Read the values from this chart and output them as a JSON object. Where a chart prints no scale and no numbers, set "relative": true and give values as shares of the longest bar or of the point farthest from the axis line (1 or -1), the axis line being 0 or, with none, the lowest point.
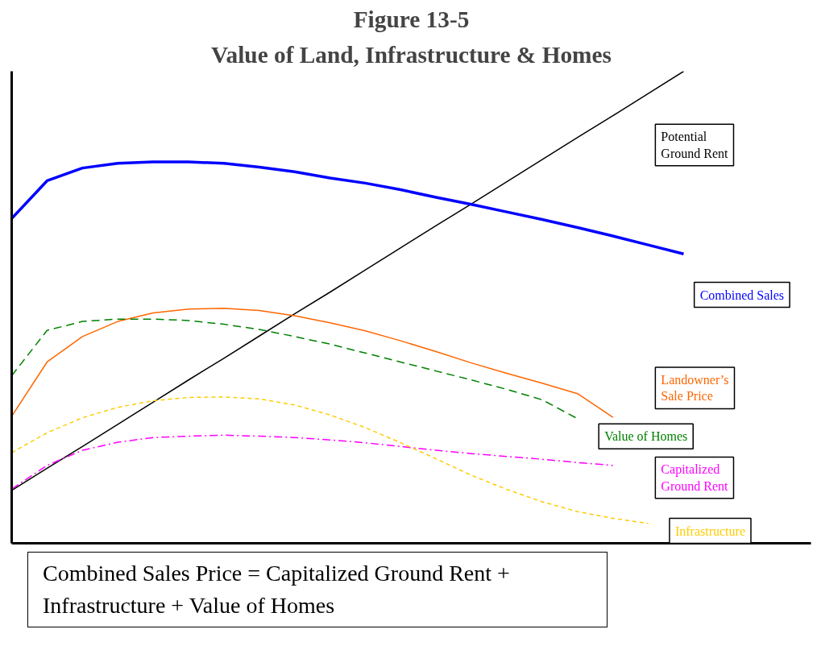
{
  "chart_data": {
    "type": "line",
    "title": "Figure 13-5",
    "subtitle": "Value of Land, Infrastructure & Homes",
    "relative": true,
    "grid": false,
    "marker": "none",
    "categories": [
      null,
      null,
      null,
      null,
      null,
      null,
      null,
      null,
      null,
      null,
      null,
      null,
      null,
      null,
      null,
      null,
      null,
      null,
      null,
      null
    ],
    "series": [
      {
        "name": "Potential Ground Rent",
        "color": "#000000",
        "line_style": "solid",
        "values": [
          0.112,
          0.159,
          0.205,
          0.252,
          0.299,
          0.346,
          0.392,
          0.439,
          0.486,
          0.532,
          0.579,
          0.626,
          0.673,
          0.719,
          0.766,
          0.813,
          0.86,
          0.906,
          0.953,
          1.0
        ]
      },
      {
        "name": "Combined Sales",
        "color": "#0000ff",
        "line_style": "solid",
        "values": [
          0.688,
          0.768,
          0.795,
          0.805,
          0.808,
          0.808,
          0.805,
          0.797,
          0.787,
          0.774,
          0.763,
          0.749,
          0.733,
          0.718,
          0.702,
          0.686,
          0.669,
          0.651,
          0.632,
          0.613
        ]
      },
      {
        "name": "Landowner’s Sale Price",
        "color": "#ff6600",
        "line_style": "solid",
        "values": [
          0.269,
          0.384,
          0.438,
          0.47,
          0.488,
          0.496,
          0.498,
          0.493,
          0.482,
          0.467,
          0.45,
          0.429,
          0.406,
          0.382,
          0.36,
          0.339,
          0.317,
          0.267,
          null,
          null
        ]
      },
      {
        "name": "Value of Homes",
        "color": "#008000",
        "line_style": "dashed",
        "values": [
          0.355,
          0.451,
          0.47,
          0.475,
          0.475,
          0.472,
          0.464,
          0.453,
          0.438,
          0.422,
          0.403,
          0.384,
          0.365,
          0.346,
          0.326,
          0.304,
          0.264,
          null,
          null,
          null
        ]
      },
      {
        "name": "Capitalized Ground Rent",
        "color": "#ff00ff",
        "line_style": "dashdot",
        "values": [
          0.115,
          0.165,
          0.197,
          0.214,
          0.224,
          0.227,
          0.229,
          0.227,
          0.224,
          0.219,
          0.213,
          0.205,
          0.197,
          0.19,
          0.184,
          0.178,
          0.171,
          0.165,
          null,
          null
        ]
      },
      {
        "name": "Infrastructure",
        "color": "#ffcc00",
        "line_style": "dotted",
        "values": [
          0.192,
          0.234,
          0.266,
          0.288,
          0.302,
          0.309,
          0.31,
          0.306,
          0.293,
          0.272,
          0.245,
          0.213,
          0.179,
          0.144,
          0.114,
          0.088,
          0.067,
          0.053,
          0.042,
          null
        ]
      }
    ],
    "annotations": [
      "Combined Sales Price = Capitalized Ground Rent + Infrastructure + Value of Homes"
    ]
  }
}
